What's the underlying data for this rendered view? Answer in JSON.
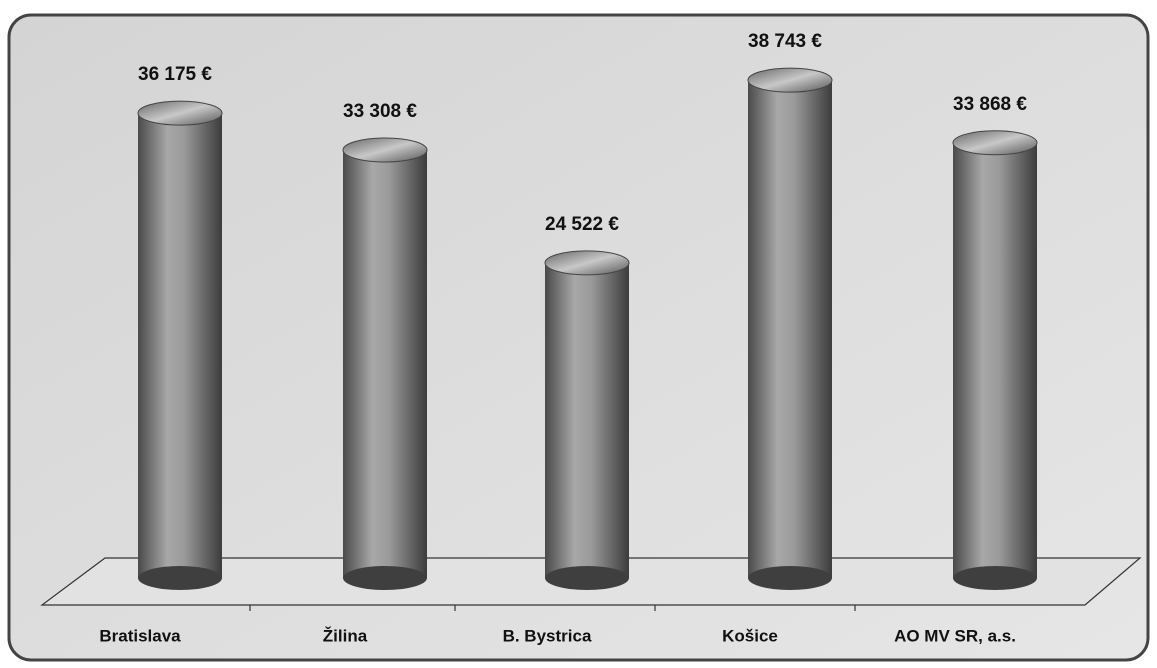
{
  "chart_data": {
    "type": "bar",
    "categories": [
      "Bratislava",
      "Žilina",
      "B. Bystrica",
      "Košice",
      "AO MV SR, a.s."
    ],
    "values": [
      36175,
      33308,
      24522,
      38743,
      33868
    ],
    "value_labels": [
      "36 175 €",
      "33 308 €",
      "24 522 €",
      "38 743 €",
      "33 868 €"
    ],
    "color": "#8a8a8a"
  }
}
